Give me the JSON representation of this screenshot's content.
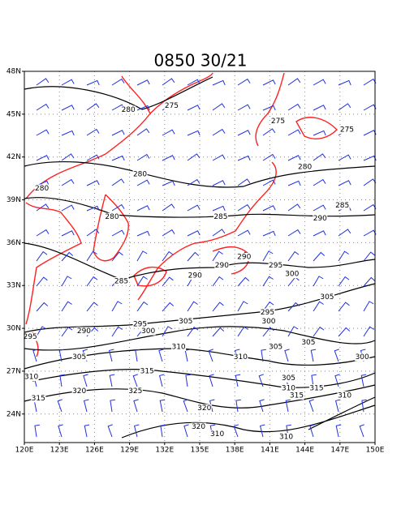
{
  "title": "0850 30/21",
  "map": {
    "xlim": [
      120,
      150
    ],
    "ylim": [
      22,
      48
    ],
    "xticks": [
      {
        "value": 120,
        "label": "120E"
      },
      {
        "value": 123,
        "label": "123E"
      },
      {
        "value": 126,
        "label": "126E"
      },
      {
        "value": 129,
        "label": "129E"
      },
      {
        "value": 132,
        "label": "132E"
      },
      {
        "value": 135,
        "label": "135E"
      },
      {
        "value": 138,
        "label": "138E"
      },
      {
        "value": 141,
        "label": "141E"
      },
      {
        "value": 144,
        "label": "144E"
      },
      {
        "value": 147,
        "label": "147E"
      },
      {
        "value": 150,
        "label": "150E"
      }
    ],
    "yticks": [
      {
        "value": 24,
        "label": "24N"
      },
      {
        "value": 27,
        "label": "27N"
      },
      {
        "value": 30,
        "label": "30N"
      },
      {
        "value": 33,
        "label": "33N"
      },
      {
        "value": 36,
        "label": "36N"
      },
      {
        "value": 39,
        "label": "39N"
      },
      {
        "value": 42,
        "label": "42N"
      },
      {
        "value": 45,
        "label": "45N"
      },
      {
        "value": 48,
        "label": "48N"
      }
    ],
    "grid": true,
    "contour_color": "#000000",
    "coast_color": "#ff2020",
    "wind_color": "#2030e0",
    "contour_labels": [
      {
        "label": 280,
        "lon": 128.9,
        "lat": 45.3
      },
      {
        "label": 275,
        "lon": 132.6,
        "lat": 45.6
      },
      {
        "label": 275,
        "lon": 141.7,
        "lat": 44.5
      },
      {
        "label": 275,
        "lon": 147.6,
        "lat": 43.9
      },
      {
        "label": 280,
        "lon": 129.9,
        "lat": 40.8
      },
      {
        "label": 280,
        "lon": 144.0,
        "lat": 41.3
      },
      {
        "label": 280,
        "lon": 121.5,
        "lat": 39.8
      },
      {
        "label": 280,
        "lon": 127.5,
        "lat": 37.8
      },
      {
        "label": 285,
        "lon": 136.8,
        "lat": 37.8
      },
      {
        "label": 290,
        "lon": 145.3,
        "lat": 37.7
      },
      {
        "label": 285,
        "lon": 147.2,
        "lat": 38.6
      },
      {
        "label": 290,
        "lon": 138.8,
        "lat": 35.0
      },
      {
        "label": 295,
        "lon": 141.5,
        "lat": 34.4
      },
      {
        "label": 290,
        "lon": 136.9,
        "lat": 34.4
      },
      {
        "label": 290,
        "lon": 134.6,
        "lat": 33.7
      },
      {
        "label": 285,
        "lon": 128.3,
        "lat": 33.3
      },
      {
        "label": 300,
        "lon": 142.9,
        "lat": 33.8
      },
      {
        "label": 305,
        "lon": 145.9,
        "lat": 32.2
      },
      {
        "label": 295,
        "lon": 140.8,
        "lat": 31.1
      },
      {
        "label": 300,
        "lon": 140.9,
        "lat": 30.5
      },
      {
        "label": 295,
        "lon": 129.9,
        "lat": 30.3
      },
      {
        "label": 300,
        "lon": 130.6,
        "lat": 29.8
      },
      {
        "label": 305,
        "lon": 133.8,
        "lat": 30.5
      },
      {
        "label": 290,
        "lon": 125.1,
        "lat": 29.8
      },
      {
        "label": 295,
        "lon": 120.5,
        "lat": 29.4
      },
      {
        "label": 305,
        "lon": 124.7,
        "lat": 28.0
      },
      {
        "label": 310,
        "lon": 133.2,
        "lat": 28.7
      },
      {
        "label": 310,
        "lon": 138.5,
        "lat": 28.0
      },
      {
        "label": 305,
        "lon": 141.5,
        "lat": 28.7
      },
      {
        "label": 305,
        "lon": 144.3,
        "lat": 29.0
      },
      {
        "label": 300,
        "lon": 148.9,
        "lat": 28.0
      },
      {
        "label": 315,
        "lon": 130.5,
        "lat": 27.0
      },
      {
        "label": 310,
        "lon": 120.6,
        "lat": 26.6
      },
      {
        "label": 320,
        "lon": 124.7,
        "lat": 25.6
      },
      {
        "label": 325,
        "lon": 129.5,
        "lat": 25.6
      },
      {
        "label": 315,
        "lon": 121.2,
        "lat": 25.1
      },
      {
        "label": 305,
        "lon": 142.6,
        "lat": 26.5
      },
      {
        "label": 310,
        "lon": 142.6,
        "lat": 25.8
      },
      {
        "label": 315,
        "lon": 143.3,
        "lat": 25.3
      },
      {
        "label": 315,
        "lon": 145.0,
        "lat": 25.8
      },
      {
        "label": 310,
        "lon": 147.4,
        "lat": 25.3
      },
      {
        "label": 320,
        "lon": 135.4,
        "lat": 24.4
      },
      {
        "label": 320,
        "lon": 134.9,
        "lat": 23.1
      },
      {
        "label": 310,
        "lon": 136.5,
        "lat": 22.6
      },
      {
        "label": 310,
        "lon": 142.4,
        "lat": 22.4
      }
    ]
  }
}
